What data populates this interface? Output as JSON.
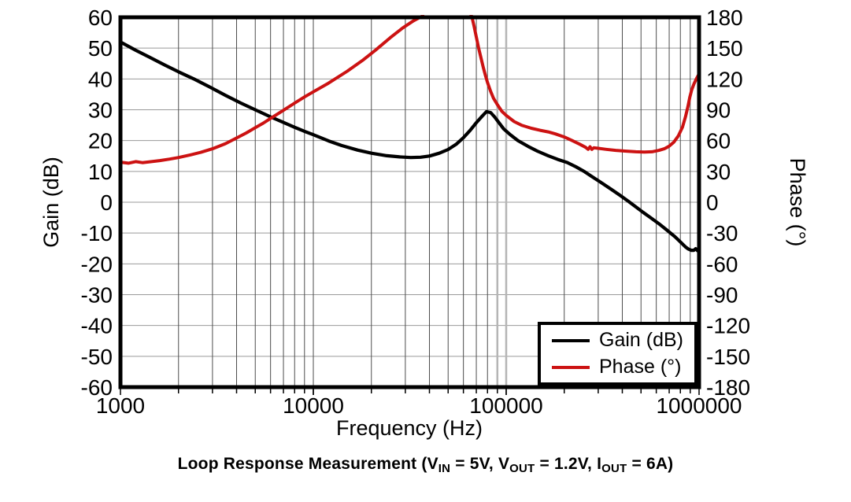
{
  "chart_data": {
    "type": "line",
    "title": "Loop Response Measurement (VIN = 5V, VOUT = 1.2V, IOUT = 6A)",
    "caption_segments": [
      {
        "text": "Loop Response Measurement (V"
      },
      {
        "text": "IN",
        "subscript": true
      },
      {
        "text": " = 5V, V"
      },
      {
        "text": "OUT",
        "subscript": true
      },
      {
        "text": " = 1.2V, I"
      },
      {
        "text": "OUT",
        "subscript": true
      },
      {
        "text": " = 6A)"
      }
    ],
    "x_axis": {
      "label": "Frequency (Hz)",
      "scale": "log",
      "min": 1000,
      "max": 1000000,
      "major_ticks": [
        1000,
        10000,
        100000,
        1000000
      ],
      "tick_labels": [
        "1000",
        "10000",
        "100000",
        "1000000"
      ],
      "minor_grid": true
    },
    "left_axis": {
      "label": "Gain (dB)",
      "min": -60,
      "max": 60,
      "step": 10,
      "tick_labels": [
        "60",
        "50",
        "40",
        "30",
        "20",
        "10",
        "0",
        "-10",
        "-20",
        "-30",
        "-40",
        "-50",
        "-60"
      ]
    },
    "right_axis": {
      "label": "Phase (°)",
      "min": -180,
      "max": 180,
      "step": 30,
      "tick_labels": [
        "180",
        "150",
        "120",
        "90",
        "60",
        "30",
        "0",
        "-30",
        "-60",
        "-90",
        "-120",
        "-150",
        "-180"
      ]
    },
    "grid": {
      "horizontal_color": "#999999",
      "vertical_color": "#4d4d4d",
      "frame_color": "#000000",
      "cursor_color": "#b5b5b5"
    },
    "cursor_lines": [
      90000,
      100000
    ],
    "legend": {
      "position": "bottom-right",
      "entries": [
        {
          "label": "Gain (dB)",
          "color": "#000000"
        },
        {
          "label": "Phase (°)",
          "color": "#cc1212"
        }
      ]
    },
    "series": [
      {
        "name": "Gain (dB)",
        "axis": "left",
        "color": "#000000",
        "width": 4.2,
        "points": [
          [
            1000,
            52
          ],
          [
            1200,
            49.3
          ],
          [
            1400,
            47.2
          ],
          [
            1700,
            44.5
          ],
          [
            2000,
            42.3
          ],
          [
            2400,
            40
          ],
          [
            2900,
            37.4
          ],
          [
            3500,
            34.7
          ],
          [
            4200,
            32.2
          ],
          [
            5000,
            30
          ],
          [
            6000,
            27.7
          ],
          [
            7000,
            25.9
          ],
          [
            8000,
            24.3
          ],
          [
            9000,
            23
          ],
          [
            10000,
            21.9
          ],
          [
            12000,
            19.9
          ],
          [
            14000,
            18.4
          ],
          [
            17000,
            16.9
          ],
          [
            20000,
            15.9
          ],
          [
            24000,
            15.1
          ],
          [
            28000,
            14.7
          ],
          [
            32000,
            14.5
          ],
          [
            36000,
            14.6
          ],
          [
            40000,
            15
          ],
          [
            45000,
            15.9
          ],
          [
            50000,
            17.1
          ],
          [
            55000,
            18.8
          ],
          [
            60000,
            20.9
          ],
          [
            65000,
            23.3
          ],
          [
            70000,
            25.8
          ],
          [
            75000,
            27.9
          ],
          [
            79000,
            29.4
          ],
          [
            83000,
            29.1
          ],
          [
            87000,
            27.7
          ],
          [
            92000,
            25.7
          ],
          [
            97000,
            23.8
          ],
          [
            105000,
            21.9
          ],
          [
            115000,
            20
          ],
          [
            130000,
            18.1
          ],
          [
            145000,
            16.6
          ],
          [
            165000,
            15.1
          ],
          [
            185000,
            13.9
          ],
          [
            207000,
            12.9
          ],
          [
            230000,
            11.5
          ],
          [
            255000,
            9.9
          ],
          [
            280000,
            8.2
          ],
          [
            310000,
            6.4
          ],
          [
            350000,
            4.2
          ],
          [
            390000,
            2.2
          ],
          [
            430000,
            0.3
          ],
          [
            470000,
            -1.5
          ],
          [
            510000,
            -3.2
          ],
          [
            560000,
            -5
          ],
          [
            620000,
            -7
          ],
          [
            680000,
            -9
          ],
          [
            750000,
            -11.2
          ],
          [
            800000,
            -12.9
          ],
          [
            850000,
            -14.5
          ],
          [
            880000,
            -15.2
          ],
          [
            910000,
            -15.6
          ],
          [
            940000,
            -15.6
          ],
          [
            960000,
            -15.1
          ],
          [
            980000,
            -15.7
          ],
          [
            1000000,
            -15.9
          ]
        ]
      },
      {
        "name": "Phase (°)",
        "axis": "right",
        "color": "#cc1212",
        "width": 4,
        "points": [
          [
            1000,
            39
          ],
          [
            1100,
            38
          ],
          [
            1200,
            39.5
          ],
          [
            1300,
            38.5
          ],
          [
            1450,
            39.5
          ],
          [
            1600,
            40.5
          ],
          [
            1800,
            42
          ],
          [
            2000,
            43.5
          ],
          [
            2300,
            46
          ],
          [
            2600,
            48.5
          ],
          [
            3000,
            52
          ],
          [
            3500,
            57
          ],
          [
            4000,
            62.5
          ],
          [
            4500,
            67.5
          ],
          [
            5000,
            72.5
          ],
          [
            5500,
            77
          ],
          [
            6000,
            81.5
          ],
          [
            7000,
            89.5
          ],
          [
            8000,
            96.5
          ],
          [
            9000,
            102.5
          ],
          [
            10000,
            107.5
          ],
          [
            12000,
            116
          ],
          [
            15000,
            127.5
          ],
          [
            18000,
            138
          ],
          [
            21000,
            148
          ],
          [
            25000,
            160
          ],
          [
            29000,
            169.5
          ],
          [
            33000,
            176.5
          ],
          [
            36500,
            181
          ],
          [
            42000,
            200
          ],
          [
            50000,
            222
          ],
          [
            58000,
            214
          ],
          [
            64000,
            188
          ],
          [
            66500,
            180
          ],
          [
            68000,
            172
          ],
          [
            70000,
            161
          ],
          [
            72000,
            150
          ],
          [
            74000,
            140.5
          ],
          [
            76000,
            131.5
          ],
          [
            78000,
            123.5
          ],
          [
            80000,
            116.5
          ],
          [
            83000,
            108
          ],
          [
            86000,
            101
          ],
          [
            90000,
            95
          ],
          [
            95000,
            88.5
          ],
          [
            100000,
            84.5
          ],
          [
            110000,
            78.5
          ],
          [
            120000,
            75
          ],
          [
            135000,
            72
          ],
          [
            150000,
            70
          ],
          [
            165000,
            68.5
          ],
          [
            180000,
            66.5
          ],
          [
            200000,
            63.5
          ],
          [
            220000,
            60
          ],
          [
            240000,
            56.5
          ],
          [
            258000,
            53.5
          ],
          [
            266000,
            51.5
          ],
          [
            272000,
            54
          ],
          [
            278000,
            51.5
          ],
          [
            285000,
            53
          ],
          [
            300000,
            52.5
          ],
          [
            330000,
            51.5
          ],
          [
            370000,
            50.5
          ],
          [
            420000,
            49.7
          ],
          [
            470000,
            49.1
          ],
          [
            520000,
            48.8
          ],
          [
            570000,
            49.1
          ],
          [
            620000,
            50.5
          ],
          [
            660000,
            52
          ],
          [
            700000,
            54.5
          ],
          [
            740000,
            58.5
          ],
          [
            780000,
            64.5
          ],
          [
            820000,
            73
          ],
          [
            850000,
            83
          ],
          [
            875000,
            93
          ],
          [
            895000,
            102
          ],
          [
            915000,
            109
          ],
          [
            940000,
            115
          ],
          [
            970000,
            120.5
          ],
          [
            1000000,
            125
          ]
        ]
      }
    ]
  }
}
